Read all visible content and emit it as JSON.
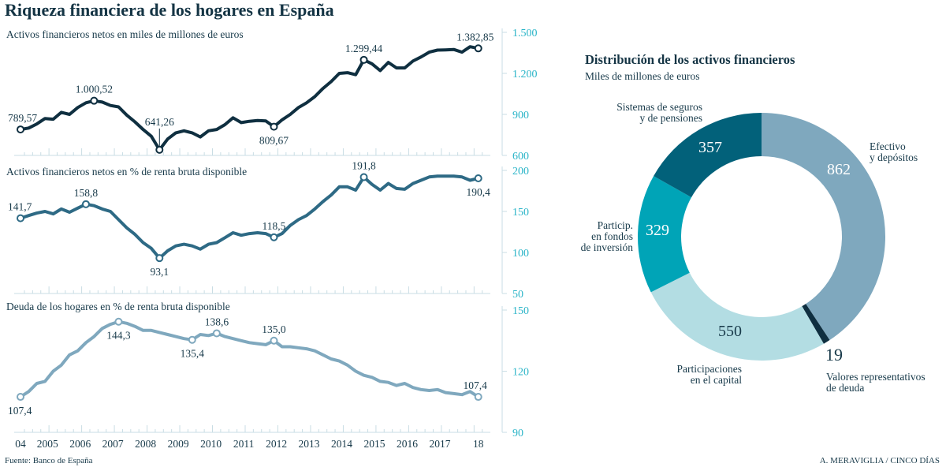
{
  "title": "Riqueza financiera de los hogares en España",
  "source": "Fuente: Banco de España",
  "credit": "A. MERAVIGLIA / CINCO DÍAS",
  "colors": {
    "axis": "#2bb5c8",
    "text": "#183a4a",
    "grid": "#c9dde4"
  },
  "chart_data": [
    {
      "type": "line",
      "title": "Activos financieros netos en miles de millones de euros",
      "color": "#0f2f40",
      "ylim": [
        600,
        1500
      ],
      "yticks": [
        600,
        900,
        1200,
        1500
      ],
      "ytick_labels": [
        "600",
        "900",
        "1.200",
        "1.500"
      ],
      "x_start": "2004 Q1",
      "x_end": "2018 Q1",
      "frequency": "quarterly",
      "values": [
        790,
        800,
        830,
        870,
        865,
        915,
        900,
        950,
        985,
        1000,
        990,
        965,
        955,
        895,
        845,
        790,
        740,
        641,
        720,
        765,
        780,
        765,
        735,
        780,
        790,
        825,
        875,
        840,
        850,
        855,
        852,
        810,
        860,
        900,
        950,
        985,
        1030,
        1090,
        1140,
        1200,
        1205,
        1190,
        1299,
        1270,
        1220,
        1280,
        1240,
        1240,
        1290,
        1320,
        1355,
        1370,
        1372,
        1375,
        1355,
        1395,
        1383
      ],
      "annotations": [
        {
          "index": 0,
          "label": "789,57",
          "pos": "above"
        },
        {
          "index": 9,
          "label": "1.000,52",
          "pos": "above"
        },
        {
          "index": 17,
          "label": "641,26",
          "pos": "above-leader"
        },
        {
          "index": 31,
          "label": "809,67",
          "pos": "below"
        },
        {
          "index": 42,
          "label": "1.299,44",
          "pos": "above"
        },
        {
          "index": 56,
          "label": "1.382,85",
          "pos": "above"
        }
      ]
    },
    {
      "type": "line",
      "title": "Activos financieros netos en % de renta bruta disponible",
      "color": "#2e6a85",
      "ylim": [
        50,
        200
      ],
      "yticks": [
        50,
        100,
        150,
        200
      ],
      "ytick_labels": [
        "50",
        "100",
        "150",
        "200"
      ],
      "x_start": "2004 Q1",
      "x_end": "2018 Q1",
      "frequency": "quarterly",
      "values": [
        141.7,
        145,
        148,
        150,
        147,
        153,
        149,
        154,
        158.8,
        157,
        153,
        150,
        140,
        130,
        122,
        112,
        105,
        93.1,
        102,
        108,
        110,
        108,
        104,
        110,
        112,
        118,
        124,
        121,
        123,
        124,
        123,
        118.5,
        123,
        133,
        140,
        145,
        153,
        162,
        170,
        180,
        180,
        176,
        191.8,
        183,
        176,
        184,
        178,
        177,
        184,
        188,
        192,
        193,
        193,
        193,
        192,
        188,
        190.4
      ],
      "annotations": [
        {
          "index": 0,
          "label": "141,7",
          "pos": "above"
        },
        {
          "index": 8,
          "label": "158,8",
          "pos": "above"
        },
        {
          "index": 17,
          "label": "93,1",
          "pos": "below"
        },
        {
          "index": 31,
          "label": "118,5",
          "pos": "above"
        },
        {
          "index": 42,
          "label": "191,8",
          "pos": "above"
        },
        {
          "index": 56,
          "label": "190,4",
          "pos": "below"
        }
      ]
    },
    {
      "type": "line",
      "title": "Deuda de los hogares en % de renta bruta disponible",
      "color": "#7fa8be",
      "ylim": [
        90,
        150
      ],
      "yticks": [
        90,
        120,
        150
      ],
      "ytick_labels": [
        "90",
        "120",
        "150"
      ],
      "x_start": "2004 Q1",
      "x_end": "2018 Q1",
      "frequency": "quarterly",
      "xtick_labels": [
        "04",
        "2005",
        "2006",
        "2007",
        "2008",
        "2009",
        "2010",
        "2011",
        "2012",
        "2013",
        "2014",
        "2015",
        "2016",
        "2017",
        "18"
      ],
      "values": [
        107.4,
        110,
        114,
        115,
        120,
        123,
        128,
        130,
        134,
        137,
        141,
        143,
        144.3,
        143.5,
        142,
        140,
        140,
        139,
        138,
        137,
        136,
        135.4,
        138,
        137.5,
        138.6,
        137,
        136,
        135,
        134,
        133.5,
        133,
        135.0,
        132,
        132,
        131.5,
        131,
        130,
        128,
        126,
        125,
        123,
        120,
        118,
        117,
        115,
        114.5,
        113,
        114,
        112,
        111,
        110.5,
        111,
        109.5,
        109,
        108.5,
        110,
        107.4
      ],
      "annotations": [
        {
          "index": 0,
          "label": "107,4",
          "pos": "below"
        },
        {
          "index": 12,
          "label": "144,3",
          "pos": "below"
        },
        {
          "index": 21,
          "label": "135,4",
          "pos": "below"
        },
        {
          "index": 24,
          "label": "138,6",
          "pos": "above"
        },
        {
          "index": 31,
          "label": "135,0",
          "pos": "above"
        },
        {
          "index": 56,
          "label": "107,4",
          "pos": "above"
        }
      ]
    },
    {
      "type": "pie",
      "title": "Distribución de los activos financieros",
      "subtitle": "Miles de millones de euros",
      "slices": [
        {
          "label": [
            "Efectivo",
            "y depósitos"
          ],
          "value": 862,
          "value_label": "862",
          "color": "#7fa8be",
          "value_color": "#ffffff"
        },
        {
          "label": [
            "Valores representativos",
            "de deuda"
          ],
          "value": 19,
          "value_label": "19",
          "color": "#0f2f40",
          "value_color": "#183a4a"
        },
        {
          "label": [
            "Participaciones",
            "en el capital"
          ],
          "value": 550,
          "value_label": "550",
          "color": "#b3dde3",
          "value_color": "#183a4a"
        },
        {
          "label": [
            "Particip.",
            "en fondos",
            "de inversión"
          ],
          "value": 329,
          "value_label": "329",
          "color": "#00a4b7",
          "value_color": "#ffffff"
        },
        {
          "label": [
            "Sistemas de seguros",
            "y de pensiones"
          ],
          "value": 357,
          "value_label": "357",
          "color": "#02617a",
          "value_color": "#ffffff"
        }
      ]
    }
  ]
}
